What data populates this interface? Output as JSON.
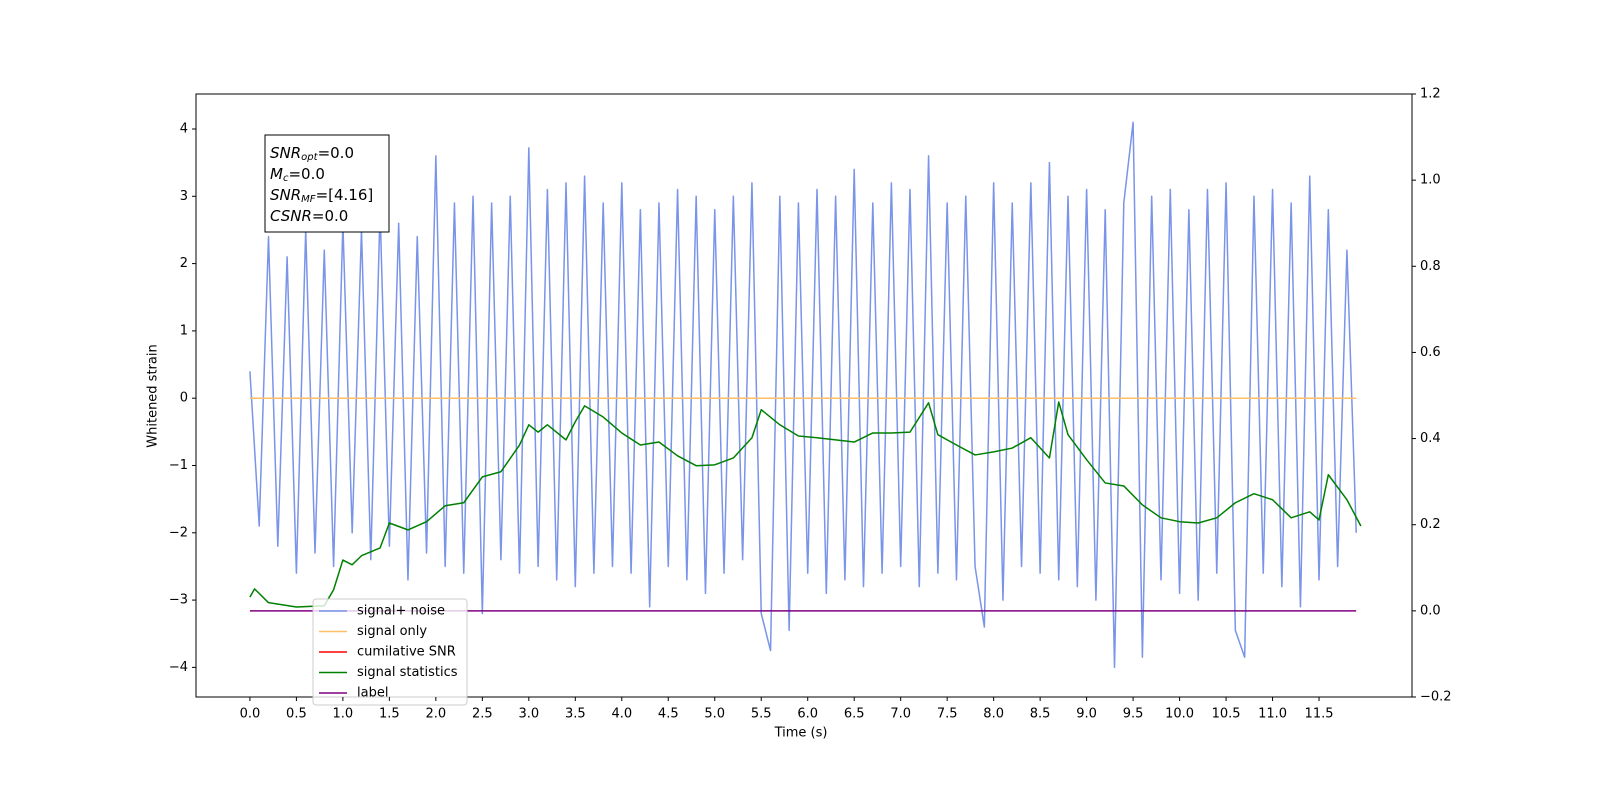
{
  "chart_data": {
    "type": "line",
    "xlabel": "Time (s)",
    "ylabel": "Whitened strain",
    "xlim": [
      -0.58,
      12.5
    ],
    "ylim": [
      -4.44,
      4.52
    ],
    "y2lim": [
      -0.2,
      1.2
    ],
    "xticks": [
      {
        "value": 0,
        "label": "0.0"
      },
      0.5,
      {
        "value": 1,
        "label": "1.0"
      },
      1.5,
      {
        "value": 2,
        "label": "2.0"
      },
      2.5,
      {
        "value": 3,
        "label": "3.0"
      },
      3.5,
      {
        "value": 4,
        "label": "4.0"
      },
      4.5,
      {
        "value": 5,
        "label": "5.0"
      },
      5.5,
      {
        "value": 6,
        "label": "6.0"
      },
      6.5,
      {
        "value": 7,
        "label": "7.0"
      },
      7.5,
      {
        "value": 8,
        "label": "8.0"
      },
      8.5,
      {
        "value": 9,
        "label": "9.0"
      },
      9.5,
      {
        "value": 10,
        "label": "10.0"
      },
      10.5,
      {
        "value": 11,
        "label": "11.0"
      },
      11.5
    ],
    "yticks": [
      {
        "value": -4,
        "label": "−4"
      },
      {
        "value": -3,
        "label": "−3"
      },
      {
        "value": -2,
        "label": "−2"
      },
      {
        "value": -1,
        "label": "−1"
      },
      0,
      1,
      2,
      3,
      4
    ],
    "y2ticks": [
      {
        "value": -0.2,
        "label": "−0.2"
      },
      {
        "value": 0,
        "label": "0.0"
      },
      0.2,
      0.4,
      0.6,
      0.8,
      {
        "value": 1,
        "label": "1.0"
      },
      1.2
    ],
    "annotation": [
      {
        "base": "SNR",
        "sub": "opt",
        "rest": "=0.0"
      },
      {
        "base": "M",
        "sub": "c",
        "rest": "=0.0"
      },
      {
        "base": "SNR",
        "sub": "MF",
        "rest": "=[4.16]"
      },
      {
        "base": "CSNR",
        "rest": "=0.0"
      }
    ],
    "legend": "lower left",
    "series": [
      {
        "name": "signal+ noise",
        "color": "#7994e8",
        "x": [
          0,
          0.1,
          0.2,
          0.3,
          0.4,
          0.5,
          0.6,
          0.7,
          0.8,
          0.9,
          1,
          1.1,
          1.2,
          1.3,
          1.4,
          1.5,
          1.6,
          1.7,
          1.8,
          1.9,
          2,
          2.1,
          2.2,
          2.3,
          2.4,
          2.5,
          2.6,
          2.7,
          2.8,
          2.9,
          3,
          3.1,
          3.2,
          3.3,
          3.4,
          3.5,
          3.6,
          3.7,
          3.8,
          3.9,
          4,
          4.1,
          4.2,
          4.3,
          4.4,
          4.5,
          4.6,
          4.7,
          4.8,
          4.9,
          5,
          5.1,
          5.2,
          5.3,
          5.4,
          5.5,
          5.6,
          5.7,
          5.8,
          5.9,
          6,
          6.1,
          6.2,
          6.3,
          6.4,
          6.5,
          6.6,
          6.7,
          6.8,
          6.9,
          7,
          7.1,
          7.2,
          7.3,
          7.4,
          7.5,
          7.6,
          7.7,
          7.8,
          7.9,
          8,
          8.1,
          8.2,
          8.3,
          8.4,
          8.5,
          8.6,
          8.7,
          8.8,
          8.9,
          9,
          9.1,
          9.2,
          9.3,
          9.4,
          9.5,
          9.6,
          9.7,
          9.8,
          9.9,
          10,
          10.1,
          10.2,
          10.3,
          10.4,
          10.5,
          10.6,
          10.7,
          10.8,
          10.9,
          11,
          11.1,
          11.2,
          11.3,
          11.4,
          11.5,
          11.6,
          11.7,
          11.8,
          11.9
        ],
        "values": [
          0.4,
          -1.9,
          2.4,
          -2.2,
          2.1,
          -2.6,
          2.5,
          -2.3,
          2.2,
          -2.5,
          2.6,
          -2.0,
          2.5,
          -2.4,
          2.8,
          -2.2,
          2.6,
          -2.7,
          2.4,
          -2.3,
          3.6,
          -2.5,
          2.9,
          -2.6,
          3.0,
          -3.2,
          2.9,
          -2.4,
          3.0,
          -2.6,
          3.72,
          -2.5,
          3.1,
          -2.7,
          3.2,
          -2.8,
          3.3,
          -2.6,
          2.9,
          -2.5,
          3.2,
          -2.6,
          2.8,
          -3.1,
          2.9,
          -2.5,
          3.1,
          -2.7,
          3.0,
          -2.9,
          2.8,
          -2.6,
          3.0,
          -2.4,
          3.2,
          -3.2,
          -3.75,
          3.0,
          -3.45,
          2.9,
          -2.6,
          3.1,
          -2.9,
          3.0,
          -2.7,
          3.4,
          -2.8,
          2.9,
          -2.6,
          3.2,
          -2.5,
          3.1,
          -2.8,
          3.6,
          -2.6,
          2.9,
          -2.7,
          3.0,
          -2.5,
          -3.4,
          3.2,
          -3.0,
          2.9,
          -2.5,
          3.2,
          -2.6,
          3.5,
          -2.7,
          3.0,
          -2.8,
          3.1,
          -3.0,
          2.8,
          -4.0,
          2.9,
          4.1,
          -3.85,
          3.0,
          -2.7,
          3.1,
          -2.9,
          2.8,
          -3.0,
          3.1,
          -2.6,
          3.2,
          -3.45,
          -3.85,
          3.0,
          -2.6,
          3.1,
          -2.8,
          2.9,
          -3.1,
          3.3,
          -2.7,
          2.8,
          -2.5,
          2.2,
          -2.0
        ]
      },
      {
        "name": "signal only",
        "color": "#ffbf66",
        "x": [
          0,
          11.9
        ],
        "values": [
          0,
          0
        ]
      },
      {
        "name": "cumilative SNR",
        "color": "#ff0000",
        "x": [],
        "values": []
      },
      {
        "name": "signal statistics",
        "color": "#008000",
        "axis": "y2",
        "x": [
          0,
          0.05,
          0.2,
          0.5,
          0.8,
          0.9,
          1,
          1.1,
          1.2,
          1.4,
          1.5,
          1.7,
          1.9,
          2.1,
          2.3,
          2.5,
          2.7,
          2.9,
          3,
          3.1,
          3.2,
          3.4,
          3.5,
          3.6,
          3.8,
          4,
          4.2,
          4.4,
          4.6,
          4.8,
          5,
          5.2,
          5.4,
          5.5,
          5.7,
          5.9,
          6.1,
          6.3,
          6.5,
          6.7,
          6.9,
          7.1,
          7.3,
          7.4,
          7.6,
          7.8,
          8,
          8.2,
          8.4,
          8.6,
          8.7,
          8.8,
          9,
          9.2,
          9.4,
          9.6,
          9.8,
          10,
          10.2,
          10.4,
          10.6,
          10.8,
          11,
          11.2,
          11.4,
          11.5,
          11.6,
          11.8,
          11.95
        ],
        "values": [
          0.032,
          0.051,
          0.019,
          0.009,
          0.012,
          0.049,
          0.118,
          0.107,
          0.128,
          0.146,
          0.204,
          0.188,
          0.207,
          0.244,
          0.251,
          0.311,
          0.323,
          0.385,
          0.432,
          0.415,
          0.432,
          0.397,
          0.439,
          0.476,
          0.45,
          0.413,
          0.385,
          0.392,
          0.36,
          0.337,
          0.339,
          0.355,
          0.402,
          0.467,
          0.432,
          0.406,
          0.402,
          0.397,
          0.392,
          0.413,
          0.413,
          0.415,
          0.483,
          0.409,
          0.385,
          0.362,
          0.369,
          0.378,
          0.402,
          0.355,
          0.485,
          0.409,
          0.351,
          0.297,
          0.29,
          0.246,
          0.216,
          0.207,
          0.204,
          0.216,
          0.251,
          0.272,
          0.258,
          0.216,
          0.23,
          0.211,
          0.316,
          0.258,
          0.197
        ]
      },
      {
        "name": "label",
        "color": "#800080",
        "axis": "y2",
        "x": [
          0,
          11.9
        ],
        "values": [
          0,
          0
        ]
      }
    ]
  }
}
